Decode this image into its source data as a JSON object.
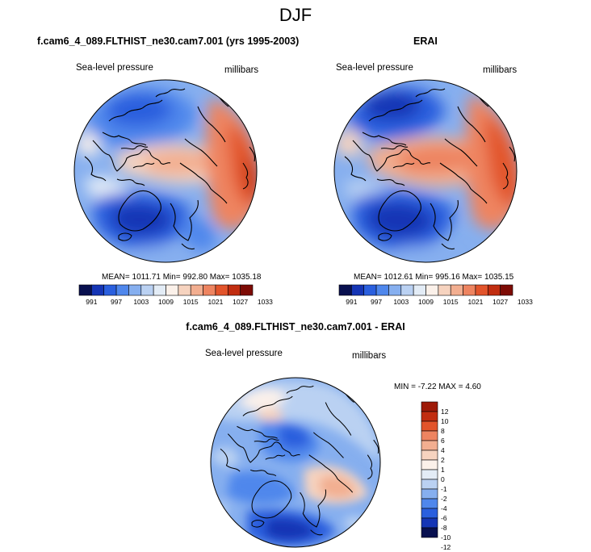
{
  "page": {
    "title": "DJF",
    "left_panel_title": "f.cam6_4_089.FLTHIST_ne30.cam7.001 (yrs 1995-2003)",
    "right_panel_title": "ERAI",
    "diff_panel_title": "f.cam6_4_089.FLTHIST_ne30.cam7.001 - ERAI"
  },
  "panels": {
    "model": {
      "variable": "Sea-level pressure",
      "units": "millibars",
      "stats_text": "MEAN= 1011.71   Min= 992.80   Max= 1035.18"
    },
    "obs": {
      "variable": "Sea-level pressure",
      "units": "millibars",
      "stats_text": "MEAN= 1012.61   Min= 995.16   Max= 1035.15"
    },
    "diff": {
      "variable": "Sea-level pressure",
      "units": "millibars",
      "minmax_text": "MIN =  -7.22 MAX =   4.60"
    }
  },
  "colors": {
    "seq": [
      "#08104f",
      "#1535b5",
      "#2a5fde",
      "#4f87ec",
      "#86afef",
      "#bad1f2",
      "#e3ecf6",
      "#fbf1ea",
      "#f6d3bf",
      "#f2ae90",
      "#ee8460",
      "#e2542b",
      "#c12d10",
      "#7d0b05"
    ],
    "diff": [
      "#08104f",
      "#1535b5",
      "#2a5fde",
      "#4f87ec",
      "#86afef",
      "#bad1f2",
      "#e3ecf6",
      "#fbf1ea",
      "#f6d3bf",
      "#f2ae90",
      "#ee8460",
      "#e2542b",
      "#c12d10",
      "#9e1a08"
    ]
  },
  "chart_data": [
    {
      "type": "heatmap",
      "projection": "polar-stereographic-north",
      "title": "f.cam6_4_089.FLTHIST_ne30.cam7.001 (yrs 1995-2003)",
      "subtitle": "Sea-level pressure (millibars)",
      "colorbar_levels": [
        991,
        997,
        1003,
        1009,
        1015,
        1021,
        1027,
        1033
      ],
      "stats": {
        "mean": 1011.71,
        "min": 992.8,
        "max": 1035.18
      }
    },
    {
      "type": "heatmap",
      "projection": "polar-stereographic-north",
      "title": "ERAI",
      "subtitle": "Sea-level pressure (millibars)",
      "colorbar_levels": [
        991,
        997,
        1003,
        1009,
        1015,
        1021,
        1027,
        1033
      ],
      "stats": {
        "mean": 1012.61,
        "min": 995.16,
        "max": 1035.15
      }
    },
    {
      "type": "heatmap",
      "projection": "polar-stereographic-north",
      "title": "f.cam6_4_089.FLTHIST_ne30.cam7.001 - ERAI",
      "subtitle": "Sea-level pressure (millibars)",
      "colorbar_levels": [
        12,
        10,
        8,
        6,
        4,
        2,
        1,
        0,
        -1,
        -2,
        -4,
        -6,
        -8,
        -10,
        -12
      ],
      "stats": {
        "min": -7.22,
        "max": 4.6
      }
    }
  ]
}
